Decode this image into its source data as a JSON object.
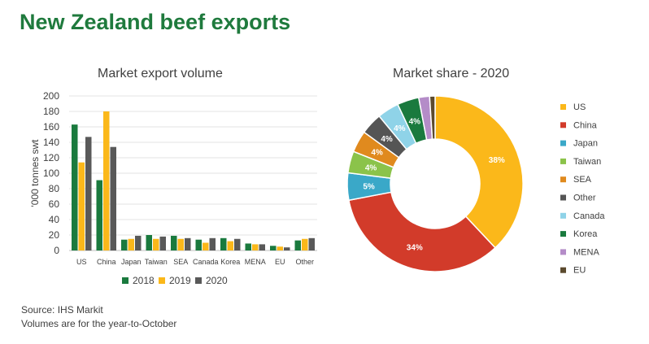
{
  "title": "New Zealand beef exports",
  "footnotes": {
    "source": "Source: IHS Markit",
    "note": "Volumes are for the year-to-October"
  },
  "colors": {
    "2018": "#1a7a3e",
    "2019": "#fbb81a",
    "2020": "#595959",
    "gridline": "#e3e3e3",
    "axis": "#bfbfbf"
  },
  "chart_data": [
    {
      "type": "bar",
      "title": "Market export volume",
      "ylabel": "'000 tonnes swt",
      "xlabel": "",
      "ylim": [
        0,
        200
      ],
      "yticks": [
        0,
        20,
        40,
        60,
        80,
        100,
        120,
        140,
        160,
        180,
        200
      ],
      "grid": true,
      "legend_position": "bottom",
      "categories": [
        "US",
        "China",
        "Japan",
        "Taiwan",
        "SEA",
        "Canada",
        "Korea",
        "MENA",
        "EU",
        "Other"
      ],
      "series": [
        {
          "name": "2018",
          "color": "#1a7a3e",
          "values": [
            163,
            91,
            14,
            20,
            19,
            14,
            16,
            9,
            6,
            13
          ]
        },
        {
          "name": "2019",
          "color": "#fbb81a",
          "values": [
            114,
            180,
            15,
            15,
            15,
            10,
            12,
            8,
            5,
            15
          ]
        },
        {
          "name": "2020",
          "color": "#595959",
          "values": [
            147,
            134,
            19,
            18,
            16,
            16,
            15,
            8,
            4,
            16
          ]
        }
      ]
    },
    {
      "type": "pie",
      "title": "Market share - 2020",
      "legend_position": "right",
      "slices": [
        {
          "label": "US",
          "value": 38,
          "display": "38%",
          "color": "#fbb81a"
        },
        {
          "label": "China",
          "value": 34,
          "display": "34%",
          "color": "#d23b2a"
        },
        {
          "label": "Japan",
          "value": 5,
          "display": "5%",
          "color": "#3aa8c8"
        },
        {
          "label": "Taiwan",
          "value": 4,
          "display": "4%",
          "color": "#8bc34a"
        },
        {
          "label": "SEA",
          "value": 4,
          "display": "4%",
          "color": "#e08a1e"
        },
        {
          "label": "Other",
          "value": 4,
          "display": "4%",
          "color": "#555555"
        },
        {
          "label": "Canada",
          "value": 4,
          "display": "4%",
          "color": "#8fd3e8"
        },
        {
          "label": "Korea",
          "value": 4,
          "display": "4%",
          "color": "#1a7a3e"
        },
        {
          "label": "MENA",
          "value": 2,
          "display": "",
          "color": "#b48cc8"
        },
        {
          "label": "EU",
          "value": 1,
          "display": "",
          "color": "#5b4a2e"
        }
      ]
    }
  ]
}
